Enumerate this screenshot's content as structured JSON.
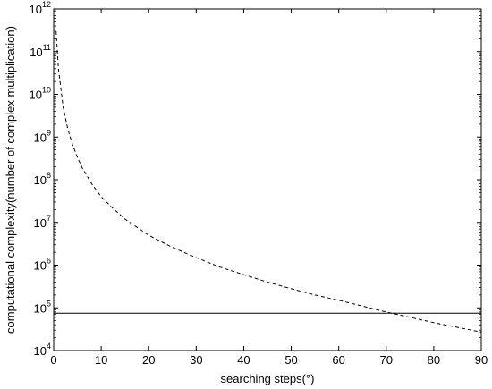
{
  "chart_data": {
    "type": "line",
    "title": "",
    "xlabel": "searching steps(°)",
    "ylabel": "computational complexity(number of complex multiplication)",
    "xlim": [
      0,
      90
    ],
    "ylim": [
      10000,
      1000000000000
    ],
    "yscale": "log",
    "grid": false,
    "x_ticks": [
      "0",
      "10",
      "20",
      "30",
      "40",
      "50",
      "60",
      "70",
      "80",
      "90"
    ],
    "y_ticks": [
      {
        "base": "10",
        "exp": "4"
      },
      {
        "base": "10",
        "exp": "5"
      },
      {
        "base": "10",
        "exp": "6"
      },
      {
        "base": "10",
        "exp": "7"
      },
      {
        "base": "10",
        "exp": "8"
      },
      {
        "base": "10",
        "exp": "9"
      },
      {
        "base": "10",
        "exp": "10"
      },
      {
        "base": "10",
        "exp": "11"
      },
      {
        "base": "10",
        "exp": "12"
      }
    ],
    "series": [
      {
        "style": "dashed",
        "color": "#000000",
        "x": [
          0.5,
          1,
          2,
          3,
          4,
          5,
          6,
          8,
          10,
          12,
          15,
          20,
          25,
          30,
          35,
          40,
          45,
          50,
          55,
          60,
          65,
          70,
          75,
          80,
          85,
          90
        ],
        "y": [
          300000000000,
          40000000000,
          5000000000,
          1500000000,
          650000000,
          330000000,
          190000000,
          80000000,
          40000000,
          24000000,
          12000000,
          5000000,
          2600000,
          1500000,
          900000,
          600000,
          400000,
          280000,
          200000,
          150000,
          110000,
          80000,
          60000,
          45000,
          35000,
          27000
        ]
      },
      {
        "style": "solid",
        "color": "#000000",
        "x": [
          0,
          90
        ],
        "y": [
          75000,
          75000
        ]
      }
    ]
  }
}
